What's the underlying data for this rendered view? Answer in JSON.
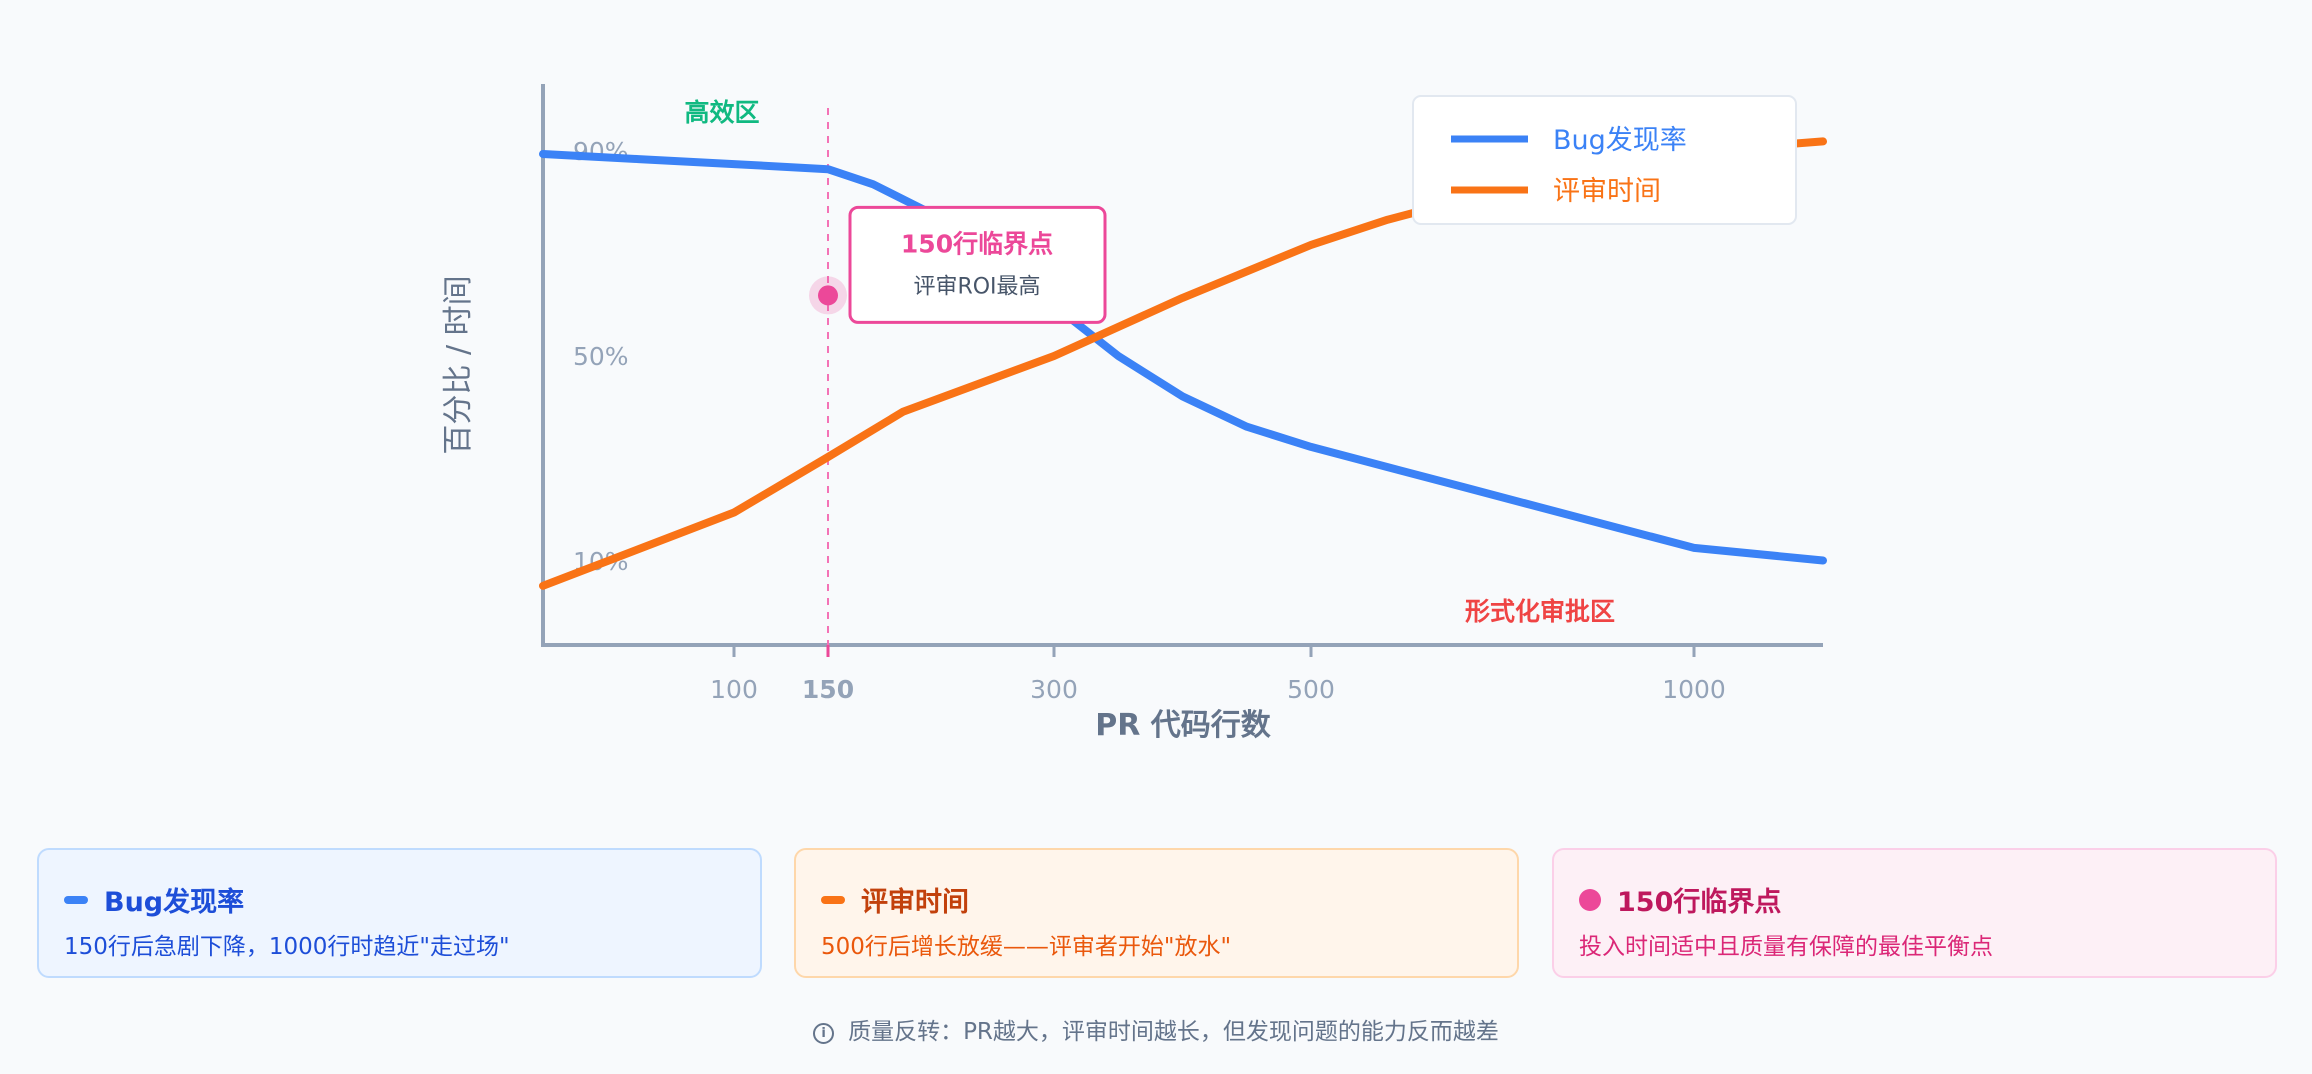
{
  "chart_data": {
    "type": "line",
    "xlabel": "PR 代码行数",
    "ylabel": "百分比 / 时间",
    "x_ticks": [
      {
        "value": 100,
        "label": "100",
        "highlight": false
      },
      {
        "value": 150,
        "label": "150",
        "highlight": true
      },
      {
        "value": 300,
        "label": "300",
        "highlight": false
      },
      {
        "value": 500,
        "label": "500",
        "highlight": false
      },
      {
        "value": 1000,
        "label": "1000",
        "highlight": false
      }
    ],
    "y_ticks": [
      {
        "value": 90,
        "label": "90%"
      },
      {
        "value": 50,
        "label": "50%"
      },
      {
        "value": 10,
        "label": "10%"
      }
    ],
    "xlim": [
      0,
      1100
    ],
    "ylim": [
      0,
      95
    ],
    "legend_position": "top-right",
    "series": [
      {
        "name": "Bug发现率",
        "color": "#3b82f6",
        "points": [
          [
            0,
            90
          ],
          [
            50,
            89
          ],
          [
            100,
            88
          ],
          [
            150,
            87
          ],
          [
            180,
            84
          ],
          [
            220,
            78
          ],
          [
            260,
            68
          ],
          [
            300,
            60
          ],
          [
            350,
            50
          ],
          [
            400,
            42
          ],
          [
            450,
            36
          ],
          [
            500,
            32
          ],
          [
            600,
            28
          ],
          [
            700,
            24
          ],
          [
            800,
            20
          ],
          [
            900,
            16
          ],
          [
            1000,
            12
          ],
          [
            1100,
            9.5
          ]
        ]
      },
      {
        "name": "评审时间",
        "color": "#f97316",
        "points": [
          [
            0,
            4.5
          ],
          [
            100,
            19
          ],
          [
            150,
            30
          ],
          [
            200,
            39
          ],
          [
            300,
            50
          ],
          [
            400,
            61.5
          ],
          [
            500,
            72
          ],
          [
            600,
            77
          ],
          [
            700,
            81
          ],
          [
            800,
            85
          ],
          [
            900,
            88.5
          ],
          [
            1000,
            90.5
          ],
          [
            1100,
            92.5
          ]
        ]
      }
    ],
    "critical_point": {
      "x": 150,
      "y": 62,
      "title": "150行临界点",
      "subtitle": "评审ROI最高",
      "color": "#ec4899"
    },
    "zones": [
      {
        "label": "高效区",
        "color": "#10b981"
      },
      {
        "label": "形式化审批区",
        "color": "#ef4444"
      }
    ]
  },
  "cards": [
    {
      "title": "Bug发现率",
      "desc": "150行后急剧下降，1000行时趋近\"走过场\""
    },
    {
      "title": "评审时间",
      "desc": "500行后增长放缓——评审者开始\"放水\""
    },
    {
      "title": "150行临界点",
      "desc": "投入时间适中且质量有保障的最佳平衡点"
    }
  ],
  "footnote": "质量反转：PR越大，评审时间越长，但发现问题的能力反而越差"
}
